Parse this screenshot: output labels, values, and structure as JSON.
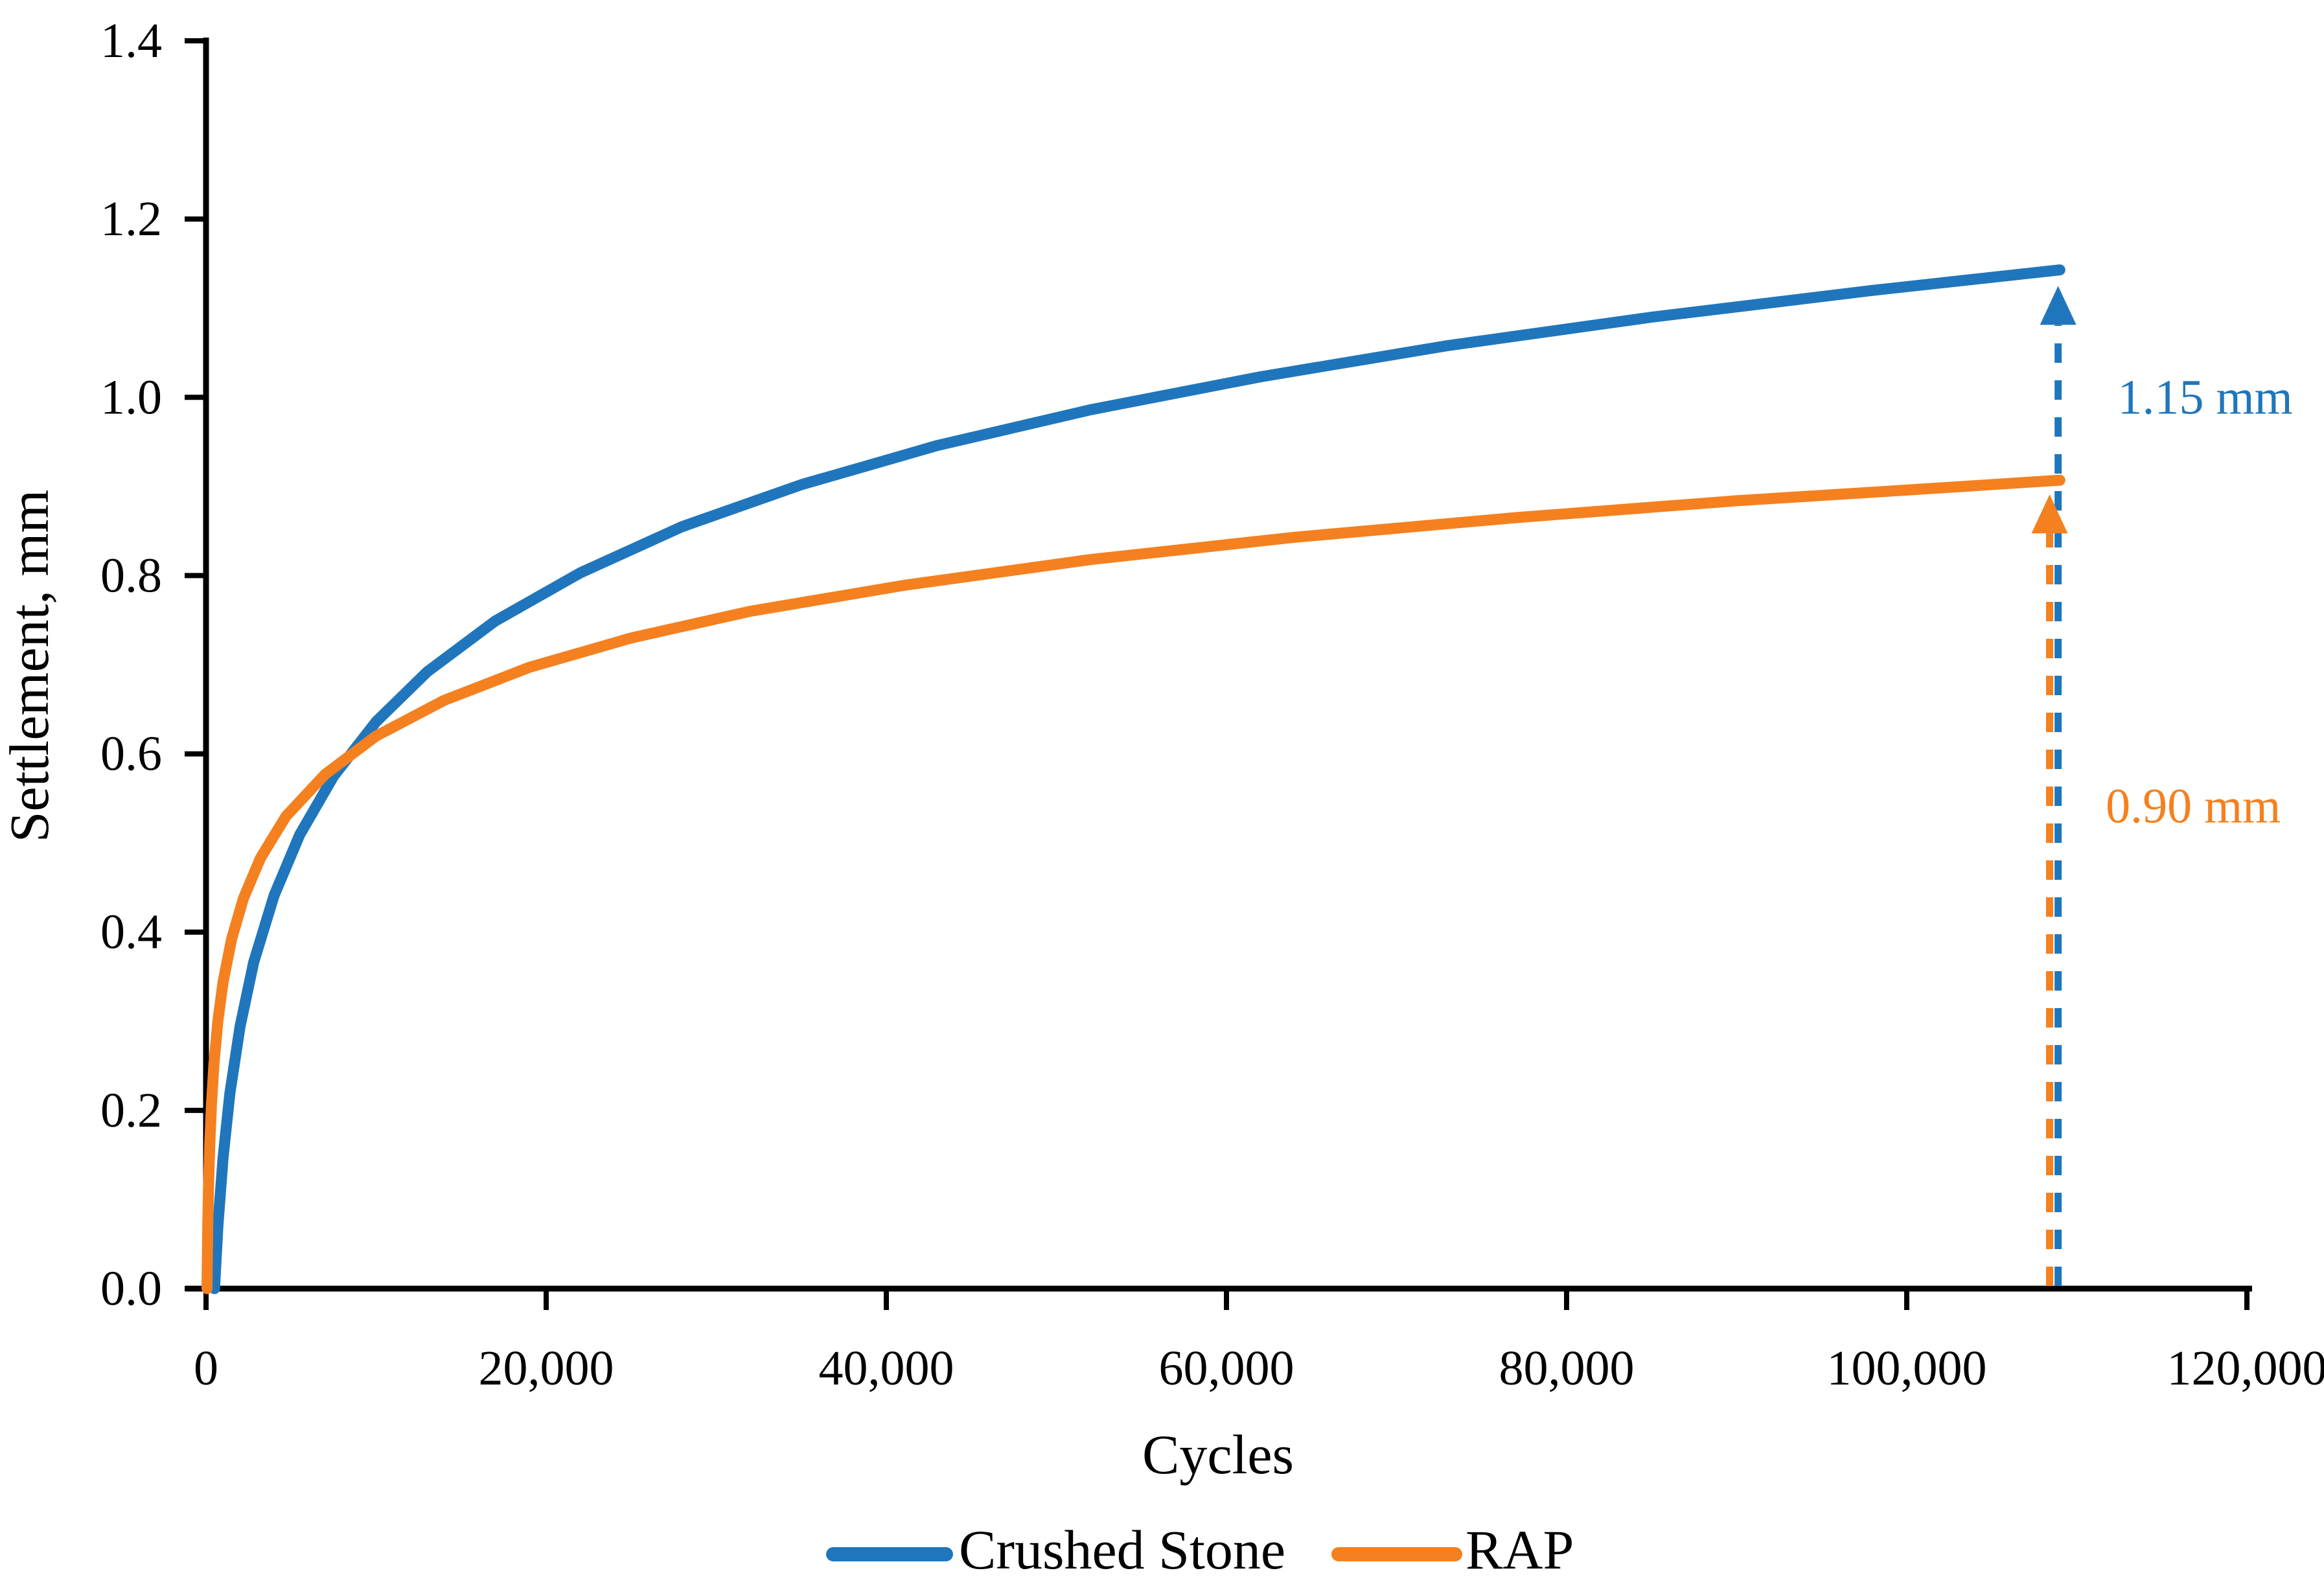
{
  "chart_data": {
    "type": "line",
    "title": "",
    "xlabel": "Cycles",
    "ylabel": "Settlement, mm",
    "xlim": [
      0,
      120000
    ],
    "ylim": [
      0,
      1.4
    ],
    "x_ticks": [
      0,
      20000,
      40000,
      60000,
      80000,
      100000,
      120000
    ],
    "x_tick_labels": [
      "0",
      "20,000",
      "40,000",
      "60,000",
      "80,000",
      "100,000",
      "120,000"
    ],
    "y_ticks": [
      0,
      0.2,
      0.4,
      0.6,
      0.8,
      1.0,
      1.2,
      1.4
    ],
    "y_tick_labels": [
      "0.0",
      "0.2",
      "0.4",
      "0.6",
      "0.8",
      "1.0",
      "1.2",
      "1.4"
    ],
    "grid": false,
    "legend_position": "bottom-center",
    "axis_color": "#000000",
    "background_color": "#ffffff",
    "series": [
      {
        "name": "Crushed Stone",
        "color": "#1F76BC",
        "points": [
          [
            500,
            0
          ],
          [
            700,
            0.071
          ],
          [
            1000,
            0.147
          ],
          [
            1400,
            0.219
          ],
          [
            2000,
            0.294
          ],
          [
            2800,
            0.366
          ],
          [
            4000,
            0.441
          ],
          [
            5500,
            0.509
          ],
          [
            7500,
            0.575
          ],
          [
            10000,
            0.636
          ],
          [
            13000,
            0.692
          ],
          [
            17000,
            0.749
          ],
          [
            22000,
            0.803
          ],
          [
            28000,
            0.855
          ],
          [
            35000,
            0.902
          ],
          [
            43000,
            0.946
          ],
          [
            52000,
            0.986
          ],
          [
            62000,
            1.023
          ],
          [
            73000,
            1.058
          ],
          [
            85000,
            1.09
          ],
          [
            98000,
            1.12
          ],
          [
            109000,
            1.143
          ]
        ]
      },
      {
        "name": "RAP",
        "color": "#F5801F",
        "points": [
          [
            57,
            0
          ],
          [
            100,
            0.067
          ],
          [
            150,
            0.116
          ],
          [
            220,
            0.162
          ],
          [
            320,
            0.207
          ],
          [
            470,
            0.253
          ],
          [
            700,
            0.301
          ],
          [
            1000,
            0.344
          ],
          [
            1500,
            0.392
          ],
          [
            2200,
            0.438
          ],
          [
            3200,
            0.483
          ],
          [
            4700,
            0.53
          ],
          [
            7000,
            0.577
          ],
          [
            10000,
            0.62
          ],
          [
            14000,
            0.66
          ],
          [
            19000,
            0.697
          ],
          [
            25000,
            0.73
          ],
          [
            32000,
            0.76
          ],
          [
            41000,
            0.789
          ],
          [
            52000,
            0.818
          ],
          [
            64000,
            0.843
          ],
          [
            77000,
            0.865
          ],
          [
            90000,
            0.884
          ],
          [
            100000,
            0.896
          ],
          [
            109000,
            0.907
          ]
        ]
      }
    ],
    "annotations": [
      {
        "text": "1.15 mm",
        "color": "#1F76BC",
        "arrow_x": 108900,
        "arrow_base_y": 0,
        "arrow_tip_y": 1.125,
        "label_x": 112400,
        "label_y": 1.0
      },
      {
        "text": "0.90 mm",
        "color": "#F5801F",
        "arrow_x": 108400,
        "arrow_base_y": 0,
        "arrow_tip_y": 0.891,
        "label_x": 111700,
        "label_y": 0.541
      }
    ]
  }
}
